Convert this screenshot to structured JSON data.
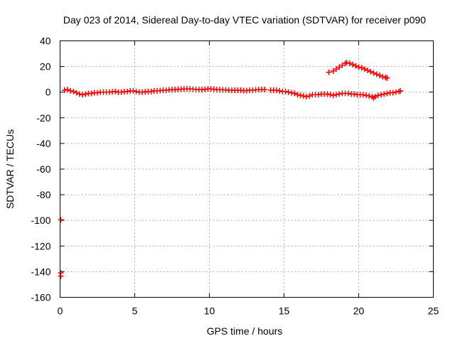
{
  "chart_data": {
    "type": "scatter",
    "title": "Day 023 of 2014, Sidereal Day-to-day VTEC variation (SDTVAR) for receiver p090",
    "xlabel": "GPS time / hours",
    "ylabel": "SDTVAR / TECUs",
    "xlim": [
      0,
      25
    ],
    "ylim": [
      -160,
      40
    ],
    "xticks": [
      "0",
      "5",
      "10",
      "15",
      "20",
      "25"
    ],
    "yticks": [
      "40",
      "20",
      "0",
      "-20",
      "-40",
      "-60",
      "-80",
      "-100",
      "-120",
      "-140",
      "-160"
    ],
    "grid": true,
    "series": [
      {
        "name": "main-track",
        "color": "#ff0000",
        "points": [
          [
            0.3,
            1.5
          ],
          [
            0.5,
            2.0
          ],
          [
            0.7,
            1.0
          ],
          [
            0.9,
            0.5
          ],
          [
            1.1,
            -0.5
          ],
          [
            1.3,
            -1.5
          ],
          [
            1.5,
            -2.0
          ],
          [
            1.7,
            -1.5
          ],
          [
            1.9,
            -1.0
          ],
          [
            2.1,
            -1.0
          ],
          [
            2.3,
            -0.5
          ],
          [
            2.5,
            -0.5
          ],
          [
            2.7,
            0.0
          ],
          [
            2.9,
            0.0
          ],
          [
            3.1,
            0.0
          ],
          [
            3.3,
            0.0
          ],
          [
            3.5,
            0.3
          ],
          [
            3.7,
            0.5
          ],
          [
            3.9,
            0.0
          ],
          [
            4.1,
            0.0
          ],
          [
            4.3,
            0.3
          ],
          [
            4.5,
            0.5
          ],
          [
            4.7,
            1.0
          ],
          [
            4.9,
            1.0
          ],
          [
            5.1,
            0.5
          ],
          [
            5.3,
            0.0
          ],
          [
            5.5,
            0.0
          ],
          [
            5.7,
            0.3
          ],
          [
            5.9,
            0.5
          ],
          [
            6.1,
            0.5
          ],
          [
            6.3,
            1.0
          ],
          [
            6.5,
            1.0
          ],
          [
            6.7,
            1.2
          ],
          [
            6.9,
            1.5
          ],
          [
            7.1,
            1.5
          ],
          [
            7.3,
            1.8
          ],
          [
            7.5,
            2.0
          ],
          [
            7.7,
            2.0
          ],
          [
            7.9,
            2.2
          ],
          [
            8.1,
            2.3
          ],
          [
            8.3,
            2.5
          ],
          [
            8.5,
            2.5
          ],
          [
            8.7,
            2.5
          ],
          [
            8.9,
            2.3
          ],
          [
            9.1,
            2.2
          ],
          [
            9.3,
            2.0
          ],
          [
            9.5,
            2.0
          ],
          [
            9.7,
            2.2
          ],
          [
            9.9,
            2.5
          ],
          [
            10.1,
            2.5
          ],
          [
            10.3,
            2.3
          ],
          [
            10.5,
            2.0
          ],
          [
            10.7,
            2.0
          ],
          [
            10.9,
            1.8
          ],
          [
            11.1,
            1.8
          ],
          [
            11.3,
            1.5
          ],
          [
            11.5,
            1.5
          ],
          [
            11.7,
            1.5
          ],
          [
            11.9,
            1.5
          ],
          [
            12.1,
            1.5
          ],
          [
            12.3,
            1.2
          ],
          [
            12.5,
            1.2
          ],
          [
            12.7,
            1.5
          ],
          [
            12.9,
            1.5
          ],
          [
            13.1,
            1.8
          ],
          [
            13.3,
            2.0
          ],
          [
            13.5,
            2.0
          ],
          [
            13.7,
            2.0
          ],
          [
            14.1,
            1.5
          ],
          [
            14.3,
            1.5
          ],
          [
            14.5,
            1.5
          ],
          [
            14.7,
            1.0
          ],
          [
            14.9,
            0.5
          ],
          [
            15.1,
            0.5
          ],
          [
            15.3,
            0.0
          ],
          [
            15.5,
            -0.5
          ],
          [
            15.7,
            -1.0
          ],
          [
            15.9,
            -2.0
          ],
          [
            16.1,
            -2.5
          ],
          [
            16.3,
            -3.0
          ],
          [
            16.5,
            -3.5
          ],
          [
            16.7,
            -3.0
          ],
          [
            16.9,
            -2.0
          ],
          [
            17.1,
            -2.0
          ],
          [
            17.3,
            -2.0
          ],
          [
            17.5,
            -1.5
          ],
          [
            17.7,
            -1.5
          ],
          [
            17.9,
            -1.5
          ],
          [
            18.1,
            -2.0
          ],
          [
            18.3,
            -2.5
          ],
          [
            18.5,
            -2.0
          ],
          [
            18.7,
            -1.5
          ],
          [
            18.9,
            -1.0
          ],
          [
            19.1,
            -1.0
          ],
          [
            19.3,
            -1.0
          ],
          [
            19.5,
            -1.5
          ],
          [
            19.7,
            -1.5
          ],
          [
            19.9,
            -2.0
          ],
          [
            20.1,
            -2.0
          ],
          [
            20.3,
            -2.0
          ],
          [
            20.5,
            -2.5
          ],
          [
            20.7,
            -3.0
          ],
          [
            20.9,
            -3.5
          ],
          [
            21.0,
            -4.5
          ],
          [
            21.1,
            -3.5
          ],
          [
            21.3,
            -2.5
          ],
          [
            21.5,
            -2.0
          ],
          [
            21.7,
            -1.5
          ],
          [
            21.9,
            -1.0
          ],
          [
            22.1,
            -0.5
          ],
          [
            22.3,
            -0.5
          ],
          [
            22.5,
            0.0
          ],
          [
            22.7,
            0.5
          ],
          [
            22.8,
            1.0
          ]
        ]
      },
      {
        "name": "upper-arc",
        "color": "#ff0000",
        "points": [
          [
            18.0,
            15.5
          ],
          [
            18.3,
            16.5
          ],
          [
            18.5,
            18.0
          ],
          [
            18.7,
            19.5
          ],
          [
            18.9,
            21.0
          ],
          [
            19.1,
            22.5
          ],
          [
            19.2,
            23.0
          ],
          [
            19.4,
            22.5
          ],
          [
            19.6,
            21.5
          ],
          [
            19.8,
            20.5
          ],
          [
            20.0,
            19.5
          ],
          [
            20.2,
            19.0
          ],
          [
            20.4,
            18.0
          ],
          [
            20.6,
            17.0
          ],
          [
            20.8,
            16.0
          ],
          [
            21.0,
            15.0
          ],
          [
            21.2,
            14.0
          ],
          [
            21.4,
            13.0
          ],
          [
            21.6,
            12.0
          ],
          [
            21.8,
            11.5
          ],
          [
            21.9,
            11.0
          ]
        ]
      },
      {
        "name": "low-outliers",
        "color": "#ff0000",
        "points": [
          [
            0.05,
            -99.5
          ],
          [
            0.05,
            -141.0
          ],
          [
            0.05,
            -143.5
          ]
        ]
      }
    ]
  }
}
